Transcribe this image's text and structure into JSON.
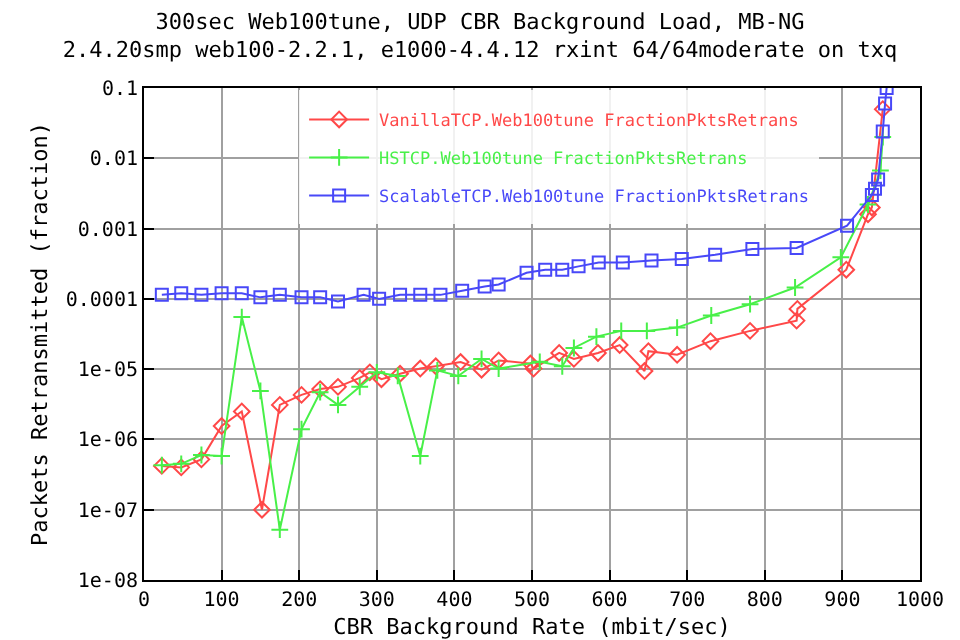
{
  "chart_data": {
    "type": "line",
    "title": "300sec Web100tune, UDP CBR Background Load, MB-NG",
    "subtitle": "2.4.20smp web100-2.2.1, e1000-4.4.12 rxint 64/64moderate on txq",
    "xlabel": "CBR Background Rate (mbit/sec)",
    "ylabel": "Packets Retransmitted (fraction)",
    "series": [
      {
        "name": "VanillaTCP.Web100tune FractionPktsRetrans",
        "color": "#ff4848",
        "marker": "diamond",
        "x": [
          23,
          48,
          74,
          100,
          126,
          152,
          175,
          203,
          227,
          250,
          278,
          291,
          306,
          330,
          356,
          376,
          408,
          435,
          457,
          498,
          502,
          535,
          554,
          585,
          613,
          645,
          650,
          687,
          730,
          781,
          841,
          842,
          905,
          933,
          938,
          952
        ],
        "values": [
          4.2e-07,
          4e-07,
          5.2e-07,
          1.55e-06,
          2.5e-06,
          1e-07,
          3.1e-06,
          4.3e-06,
          5.2e-06,
          5.6e-06,
          7.5e-06,
          9e-06,
          7.2e-06,
          8.6e-06,
          1.02e-05,
          1.1e-05,
          1.26e-05,
          9.8e-06,
          1.33e-05,
          1.2e-05,
          1.02e-05,
          1.7e-05,
          1.4e-05,
          1.7e-05,
          2.2e-05,
          9.4e-06,
          1.8e-05,
          1.6e-05,
          2.5e-05,
          3.5e-05,
          4.9e-05,
          7.2e-05,
          0.00026,
          0.0016,
          0.002,
          0.05
        ]
      },
      {
        "name": "HSTCP.Web100tune FractionPktsRetrans",
        "color": "#48f048",
        "marker": "cross",
        "x": [
          23,
          48,
          74,
          100,
          126,
          150,
          175,
          203,
          227,
          250,
          278,
          300,
          327,
          356,
          378,
          405,
          435,
          457,
          510,
          539,
          554,
          583,
          615,
          648,
          687,
          731,
          781,
          839,
          898,
          933,
          949,
          952
        ],
        "values": [
          4.3e-07,
          4.5e-07,
          6e-07,
          5.8e-07,
          5.5e-05,
          4.9e-06,
          5.2e-08,
          1.4e-06,
          4.7e-06,
          3.1e-06,
          5.6e-06,
          9e-06,
          8e-06,
          5.8e-07,
          9.6e-06,
          8e-06,
          1.4e-05,
          1.02e-05,
          1.27e-05,
          1.1e-05,
          2e-05,
          2.9e-05,
          3.5e-05,
          3.5e-05,
          3.9e-05,
          5.8e-05,
          8.4e-05,
          0.000145,
          0.00039,
          0.0022,
          0.0067,
          0.02
        ]
      },
      {
        "name": "ScalableTCP.Web100tune FractionPktsRetrans",
        "color": "#4848f8",
        "marker": "square",
        "x": [
          23,
          48,
          74,
          100,
          126,
          150,
          175,
          203,
          227,
          250,
          283,
          303,
          330,
          356,
          382,
          410,
          439,
          457,
          493,
          517,
          539,
          560,
          586,
          617,
          654,
          693,
          736,
          784,
          841,
          906,
          938,
          942,
          946,
          952,
          955,
          957
        ],
        "values": [
          0.000114,
          0.00012,
          0.000114,
          0.00012,
          0.00012,
          0.000105,
          0.000114,
          0.000105,
          0.000105,
          9.2e-05,
          0.000114,
          0.0001,
          0.000114,
          0.000114,
          0.000114,
          0.00013,
          0.00015,
          0.00016,
          0.000235,
          0.00026,
          0.00026,
          0.00029,
          0.00033,
          0.00033,
          0.00035,
          0.00037,
          0.000425,
          0.00051,
          0.00053,
          0.0011,
          0.003,
          0.0037,
          0.005,
          0.024,
          0.06,
          0.1
        ]
      }
    ],
    "log": "y",
    "xlim": [
      0,
      1000
    ],
    "xticks": [
      0,
      100,
      200,
      300,
      400,
      500,
      600,
      700,
      800,
      900,
      1000
    ],
    "ylim": [
      1e-08,
      0.1
    ],
    "yticks": [
      {
        "value": 1e-08,
        "label": "1e-08"
      },
      {
        "value": 1e-07,
        "label": "1e-07"
      },
      {
        "value": 1e-06,
        "label": "1e-06"
      },
      {
        "value": 1e-05,
        "label": "1e-05"
      },
      0.0001,
      0.001,
      0.01,
      0.1
    ],
    "grid": true,
    "legend": "top right",
    "line_style": "solid"
  }
}
